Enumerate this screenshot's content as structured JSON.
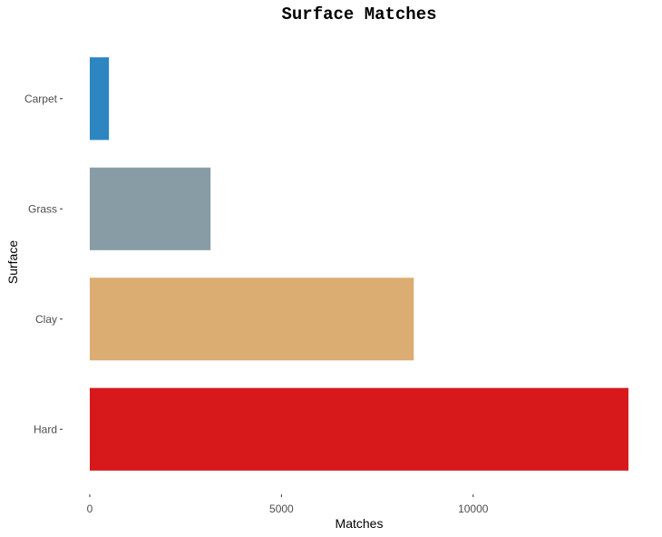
{
  "chart_data": {
    "type": "bar",
    "orientation": "horizontal",
    "title": "Surface Matches",
    "xlabel": "Matches",
    "ylabel": "Surface",
    "categories": [
      "Carpet",
      "Grass",
      "Clay",
      "Hard"
    ],
    "values": [
      500,
      3150,
      8450,
      14050
    ],
    "colors": [
      "#2e86c1",
      "#889ca5",
      "#dbad72",
      "#d7191c"
    ],
    "xlim": [
      0,
      14050
    ],
    "xticks": [
      0,
      5000,
      10000
    ],
    "xtick_labels": [
      "0",
      "5000",
      "10000"
    ],
    "grid": false,
    "legend": "none"
  }
}
